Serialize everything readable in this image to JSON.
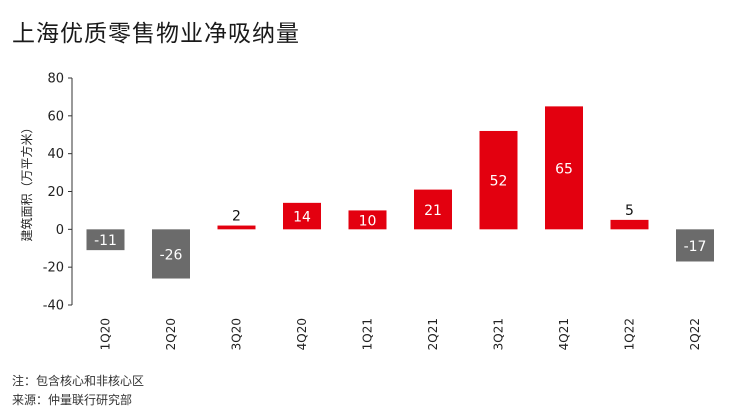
{
  "title": "上海优质零售物业净吸纳量",
  "notes": {
    "note": "注：包含核心和非核心区",
    "source": "来源：仲量联行研究部"
  },
  "colors": {
    "positive": "#e3000f",
    "negative": "#6b6b6b",
    "axis": "#333333"
  },
  "chart_data": {
    "type": "bar",
    "categories": [
      "1Q20",
      "2Q20",
      "3Q20",
      "4Q20",
      "1Q21",
      "2Q21",
      "3Q21",
      "4Q21",
      "1Q22",
      "2Q22"
    ],
    "values": [
      -11,
      -26,
      2,
      14,
      10,
      21,
      52,
      65,
      5,
      -17
    ],
    "ylabel": "建筑面积（万平方米）",
    "ylim": [
      -40,
      80
    ],
    "yticks": [
      "-40",
      "-20",
      "0",
      "20",
      "40",
      "60",
      "80"
    ],
    "data_labels": [
      "-11",
      "-26",
      "2",
      "14",
      "10",
      "21",
      "52",
      "65",
      "5",
      "-17"
    ],
    "grid": false
  }
}
